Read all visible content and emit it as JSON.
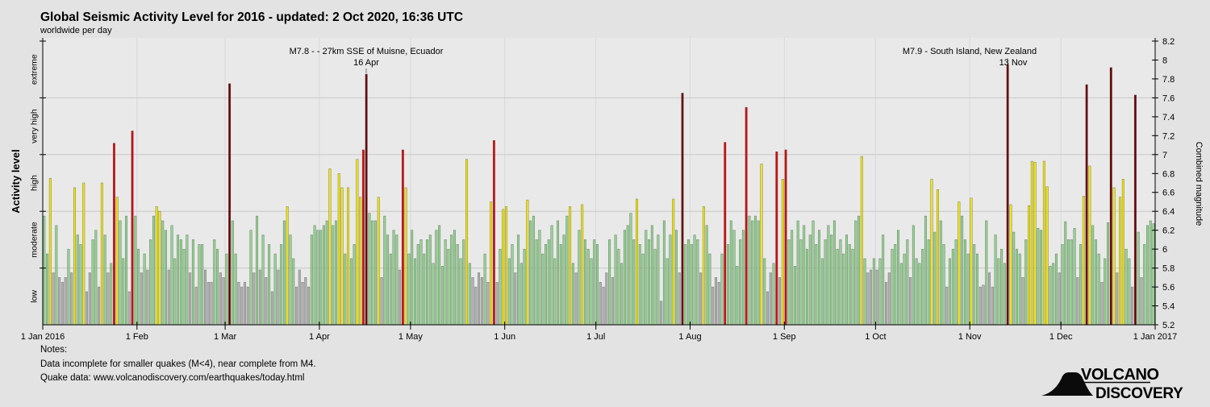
{
  "header": {
    "title": "Global Seismic Activity Level for 2016 - updated:  2 Oct 2020, 16:36 UTC",
    "subtitle": "worldwide per day"
  },
  "left_axis": {
    "title": "Activity level",
    "bands": [
      "extreme",
      "very high",
      "high",
      "moderate",
      "low"
    ]
  },
  "right_axis": {
    "title": "Combined magnitude",
    "tick_min": 5.2,
    "tick_max": 8.2,
    "tick_step": 0.2
  },
  "x_axis": {
    "labels": [
      "1 Jan 2016",
      "1 Feb",
      "1 Mar",
      "1 Apr",
      "1 May",
      "1 Jun",
      "1 Jul",
      "1 Aug",
      "1 Sep",
      "1 Oct",
      "1 Nov",
      "1 Dec",
      "1 Jan 2017"
    ]
  },
  "annotations": [
    {
      "line1": "M7.8 - - 27km SSE of Muisne, Ecuador",
      "line2": "16 Apr"
    },
    {
      "line1": "M7.9 - South Island, New Zealand",
      "line2": "13 Nov"
    }
  ],
  "notes": {
    "heading": "Notes:",
    "line1": "Data incomplete for smaller quakes (M<4), near complete from M4.",
    "line2": "Quake data: www.volcanodiscovery.com/earthquakes/today.html"
  },
  "logo": {
    "word1": "VOLCANO",
    "word2": "DISCOVERY"
  },
  "colors": {
    "background": "#e3e3e3",
    "plot_background": "#e9e9e9",
    "grid_horizontal": "#c9c9c9",
    "grid_vertical": "#d9d9d9",
    "bar_edge": "#333333",
    "low": "#b3b3b3",
    "moderate": "#93d68f",
    "high": "#f2e70c",
    "very_high": "#d40d0d",
    "extreme": "#6e0003",
    "logo_red": "#c8202a"
  },
  "chart_data": {
    "type": "bar",
    "title": "Global Seismic Activity Level for 2016",
    "xlabel_start": "1 Jan 2016",
    "xlabel_end": "1 Jan 2017",
    "ylabel_left": "Activity level",
    "ylabel_right": "Combined magnitude",
    "ylim": [
      5.2,
      8.2
    ],
    "grid": true,
    "days": 366,
    "start_date": "2016-01-01",
    "month_lengths": [
      31,
      29,
      31,
      30,
      31,
      30,
      31,
      31,
      30,
      31,
      30,
      31
    ],
    "band_boundaries": [
      5.8,
      6.4,
      7.0,
      7.6
    ],
    "level_thresholds": {
      "moderate": 5.8,
      "high": 6.4,
      "very_high": 7.0,
      "extreme": 7.6
    },
    "notable_events": [
      {
        "date": "2016-04-16",
        "value": 7.85,
        "label": "M7.8 - - 27km SSE of Muisne, Ecuador"
      },
      {
        "date": "2016-11-13",
        "value": 7.95,
        "label": "M7.9 - South Island, New Zealand"
      }
    ],
    "values": [
      6.35,
      5.95,
      6.75,
      5.75,
      6.25,
      5.7,
      5.65,
      5.7,
      6.0,
      5.75,
      6.65,
      6.15,
      6.05,
      6.7,
      5.55,
      5.75,
      6.1,
      6.2,
      5.6,
      6.7,
      6.15,
      5.75,
      5.85,
      7.12,
      6.55,
      6.3,
      5.9,
      6.35,
      5.55,
      7.25,
      6.35,
      6.0,
      5.75,
      5.95,
      5.78,
      6.1,
      6.35,
      6.45,
      6.4,
      6.3,
      6.2,
      5.78,
      6.25,
      5.9,
      6.15,
      6.1,
      6.0,
      6.15,
      5.75,
      6.1,
      5.6,
      6.05,
      6.05,
      5.78,
      5.65,
      5.65,
      6.1,
      6.0,
      5.75,
      5.7,
      5.95,
      7.75,
      6.3,
      5.95,
      5.65,
      5.6,
      5.65,
      5.6,
      6.2,
      5.75,
      6.35,
      5.78,
      6.15,
      5.7,
      6.05,
      5.55,
      5.95,
      5.78,
      6.05,
      6.3,
      6.45,
      6.15,
      5.9,
      5.6,
      5.78,
      5.65,
      5.7,
      5.6,
      6.15,
      6.25,
      6.2,
      6.2,
      6.25,
      6.3,
      6.85,
      6.25,
      6.3,
      6.8,
      6.65,
      5.95,
      6.65,
      5.9,
      6.05,
      6.95,
      6.55,
      7.05,
      7.85,
      6.38,
      6.3,
      6.3,
      6.55,
      5.7,
      6.35,
      6.15,
      5.95,
      6.2,
      6.15,
      5.78,
      7.05,
      6.65,
      5.95,
      6.2,
      5.9,
      6.05,
      6.1,
      5.95,
      6.1,
      6.15,
      5.85,
      6.2,
      6.25,
      5.82,
      6.1,
      6.0,
      6.15,
      6.2,
      6.05,
      5.9,
      6.1,
      6.95,
      5.85,
      5.7,
      5.6,
      5.75,
      5.7,
      5.95,
      5.65,
      6.5,
      7.15,
      5.65,
      6.0,
      6.42,
      6.45,
      5.9,
      6.05,
      5.75,
      6.15,
      5.85,
      6.0,
      6.52,
      6.3,
      6.35,
      6.1,
      6.2,
      5.95,
      6.05,
      6.1,
      6.25,
      5.9,
      6.3,
      6.05,
      6.15,
      6.35,
      6.45,
      5.85,
      5.75,
      6.2,
      6.47,
      6.1,
      6.0,
      5.9,
      6.1,
      6.05,
      5.65,
      5.6,
      5.75,
      6.1,
      5.7,
      6.15,
      6.0,
      5.85,
      6.2,
      6.25,
      6.38,
      6.1,
      6.53,
      6.05,
      5.95,
      6.2,
      6.1,
      6.25,
      6.0,
      6.15,
      5.45,
      6.3,
      5.9,
      6.15,
      6.53,
      6.2,
      5.75,
      7.65,
      6.05,
      6.1,
      6.05,
      6.15,
      6.1,
      5.75,
      6.45,
      6.25,
      5.95,
      5.6,
      5.7,
      5.65,
      5.95,
      7.13,
      6.05,
      6.3,
      6.2,
      5.82,
      6.1,
      6.2,
      7.5,
      6.35,
      6.3,
      6.35,
      6.3,
      6.9,
      5.9,
      5.55,
      5.75,
      5.85,
      7.03,
      5.7,
      6.74,
      7.05,
      6.1,
      6.2,
      5.82,
      6.3,
      6.1,
      6.25,
      6.0,
      6.15,
      6.3,
      6.05,
      6.2,
      5.9,
      6.1,
      6.25,
      6.15,
      6.3,
      6.0,
      6.1,
      5.95,
      6.15,
      6.05,
      6.0,
      6.3,
      6.35,
      6.98,
      5.9,
      5.75,
      5.78,
      5.9,
      5.78,
      5.9,
      6.15,
      5.65,
      5.75,
      6.0,
      6.05,
      6.2,
      5.85,
      5.95,
      6.1,
      5.7,
      6.25,
      5.9,
      5.85,
      6.0,
      6.35,
      6.1,
      6.74,
      6.18,
      6.63,
      6.3,
      6.05,
      5.6,
      5.9,
      6.0,
      6.1,
      6.5,
      6.35,
      6.1,
      5.95,
      6.54,
      6.05,
      5.95,
      5.6,
      5.62,
      6.3,
      5.75,
      5.6,
      6.15,
      5.9,
      6.0,
      5.85,
      7.95,
      6.47,
      6.18,
      6.0,
      5.95,
      5.7,
      6.1,
      6.46,
      6.93,
      6.92,
      6.22,
      6.2,
      6.93,
      6.66,
      5.82,
      5.85,
      5.95,
      5.75,
      6.05,
      6.29,
      6.1,
      6.1,
      6.22,
      5.7,
      6.05,
      6.56,
      7.74,
      6.88,
      6.25,
      6.1,
      5.95,
      5.65,
      5.9,
      6.28,
      7.92,
      6.65,
      5.75,
      6.55,
      6.74,
      6.0,
      5.9,
      5.6,
      7.63,
      6.18,
      5.7,
      6.05,
      6.25,
      6.3,
      6.27
    ]
  }
}
